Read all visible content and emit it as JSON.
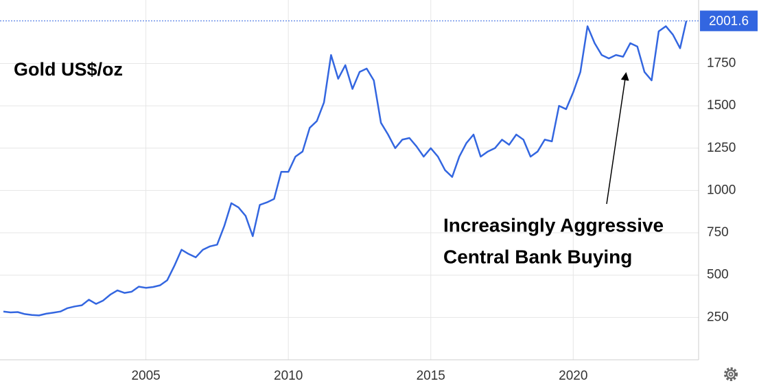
{
  "chart_data": {
    "type": "line",
    "title": "Gold US$/oz",
    "annotation": [
      "Increasingly Aggressive",
      "Central Bank Buying"
    ],
    "x": [
      2000,
      2000.25,
      2000.5,
      2000.75,
      2001,
      2001.25,
      2001.5,
      2001.75,
      2002,
      2002.25,
      2002.5,
      2002.75,
      2003,
      2003.25,
      2003.5,
      2003.75,
      2004,
      2004.25,
      2004.5,
      2004.75,
      2005,
      2005.25,
      2005.5,
      2005.75,
      2006,
      2006.25,
      2006.5,
      2006.75,
      2007,
      2007.25,
      2007.5,
      2007.75,
      2008,
      2008.25,
      2008.5,
      2008.75,
      2009,
      2009.25,
      2009.5,
      2009.75,
      2010,
      2010.25,
      2010.5,
      2010.75,
      2011,
      2011.25,
      2011.5,
      2011.75,
      2012,
      2012.25,
      2012.5,
      2012.75,
      2013,
      2013.25,
      2013.5,
      2013.75,
      2014,
      2014.25,
      2014.5,
      2014.75,
      2015,
      2015.25,
      2015.5,
      2015.75,
      2016,
      2016.25,
      2016.5,
      2016.75,
      2017,
      2017.25,
      2017.5,
      2017.75,
      2018,
      2018.25,
      2018.5,
      2018.75,
      2019,
      2019.25,
      2019.5,
      2019.75,
      2020,
      2020.25,
      2020.5,
      2020.75,
      2021,
      2021.25,
      2021.5,
      2021.75,
      2022,
      2022.25,
      2022.5,
      2022.75,
      2023,
      2023.25,
      2023.5,
      2023.75,
      2023.97
    ],
    "series": [
      {
        "name": "Gold",
        "color": "#3366e0",
        "values": [
          285,
          280,
          282,
          270,
          265,
          262,
          272,
          278,
          285,
          305,
          315,
          322,
          355,
          330,
          350,
          385,
          410,
          395,
          402,
          432,
          425,
          430,
          440,
          470,
          555,
          650,
          625,
          605,
          650,
          670,
          680,
          790,
          925,
          900,
          850,
          730,
          915,
          930,
          950,
          1110,
          1110,
          1200,
          1230,
          1370,
          1410,
          1520,
          1800,
          1660,
          1740,
          1600,
          1700,
          1720,
          1650,
          1400,
          1330,
          1250,
          1300,
          1310,
          1260,
          1200,
          1250,
          1200,
          1120,
          1080,
          1200,
          1280,
          1330,
          1200,
          1230,
          1250,
          1300,
          1270,
          1330,
          1300,
          1200,
          1230,
          1300,
          1290,
          1500,
          1480,
          1580,
          1700,
          1970,
          1870,
          1800,
          1780,
          1800,
          1790,
          1870,
          1850,
          1700,
          1650,
          1940,
          1970,
          1920,
          1840,
          2001.6
        ]
      }
    ],
    "xlim": [
      2000,
      2024.4
    ],
    "xticks": [
      2005,
      2010,
      2015,
      2020
    ],
    "ylim": [
      0,
      2125
    ],
    "yticks": [
      250,
      500,
      750,
      1000,
      1250,
      1500,
      1750
    ],
    "grid": true
  }
}
